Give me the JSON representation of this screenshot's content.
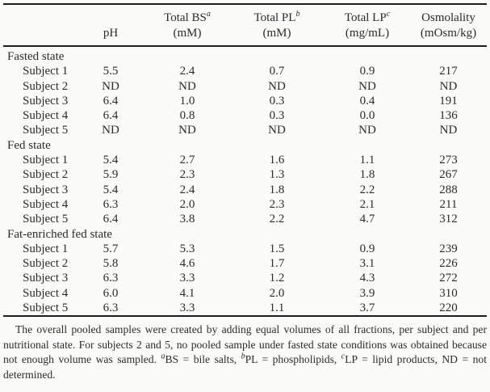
{
  "table": {
    "columns": [
      {
        "line1": "",
        "sup": "",
        "line2": "pH"
      },
      {
        "line1": "Total BS",
        "sup": "a",
        "line2": "(mM)"
      },
      {
        "line1": "Total PL",
        "sup": "b",
        "line2": "(mM)"
      },
      {
        "line1": "Total LP",
        "sup": "c",
        "line2": "(mg/mL)"
      },
      {
        "line1": "Osmolality",
        "sup": "",
        "line2": "(mOsm/kg)"
      }
    ],
    "groups": [
      {
        "label": "Fasted state",
        "rows": [
          {
            "label": "Subject 1",
            "values": [
              "5.5",
              "2.4",
              "0.7",
              "0.9",
              "217"
            ]
          },
          {
            "label": "Subject 2",
            "values": [
              "ND",
              "ND",
              "ND",
              "ND",
              "ND"
            ]
          },
          {
            "label": "Subject 3",
            "values": [
              "6.4",
              "1.0",
              "0.3",
              "0.4",
              "191"
            ]
          },
          {
            "label": "Subject 4",
            "values": [
              "6.4",
              "0.8",
              "0.3",
              "0.0",
              "136"
            ]
          },
          {
            "label": "Subject 5",
            "values": [
              "ND",
              "ND",
              "ND",
              "ND",
              "ND"
            ]
          }
        ]
      },
      {
        "label": "Fed state",
        "rows": [
          {
            "label": "Subject 1",
            "values": [
              "5.4",
              "2.7",
              "1.6",
              "1.1",
              "273"
            ]
          },
          {
            "label": "Subject 2",
            "values": [
              "5.9",
              "2.3",
              "1.3",
              "1.8",
              "267"
            ]
          },
          {
            "label": "Subject 3",
            "values": [
              "5.4",
              "2.4",
              "1.8",
              "2.2",
              "288"
            ]
          },
          {
            "label": "Subject 4",
            "values": [
              "6.3",
              "2.0",
              "2.3",
              "2.1",
              "211"
            ]
          },
          {
            "label": "Subject 5",
            "values": [
              "6.4",
              "3.8",
              "2.2",
              "4.7",
              "312"
            ]
          }
        ]
      },
      {
        "label": "Fat-enriched fed state",
        "rows": [
          {
            "label": "Subject 1",
            "values": [
              "5.7",
              "5.3",
              "1.5",
              "0.9",
              "239"
            ]
          },
          {
            "label": "Subject 2",
            "values": [
              "5.8",
              "4.6",
              "1.7",
              "3.1",
              "226"
            ]
          },
          {
            "label": "Subject 3",
            "values": [
              "6.3",
              "3.3",
              "1.2",
              "4.3",
              "272"
            ]
          },
          {
            "label": "Subject 4",
            "values": [
              "6.0",
              "4.1",
              "2.0",
              "3.9",
              "310"
            ]
          },
          {
            "label": "Subject 5",
            "values": [
              "6.3",
              "3.3",
              "1.1",
              "3.7",
              "220"
            ]
          }
        ]
      }
    ]
  },
  "footnote": {
    "parts": [
      {
        "text": "The overall pooled samples were created by adding equal volumes of all fractions, per subject and per nutritional state. For subjects 2 and 5, no pooled sample under fasted state conditions was obtained because not enough volume was sampled. "
      },
      {
        "sup": "a"
      },
      {
        "text": "BS = bile salts, "
      },
      {
        "sup": "b"
      },
      {
        "text": "PL = phospholipids, "
      },
      {
        "sup": "c"
      },
      {
        "text": "LP = lipid products, ND = not determined."
      }
    ]
  },
  "colors": {
    "background": "#fbfbf9",
    "text": "#2b2b2b",
    "rule": "#1e1e1e"
  }
}
